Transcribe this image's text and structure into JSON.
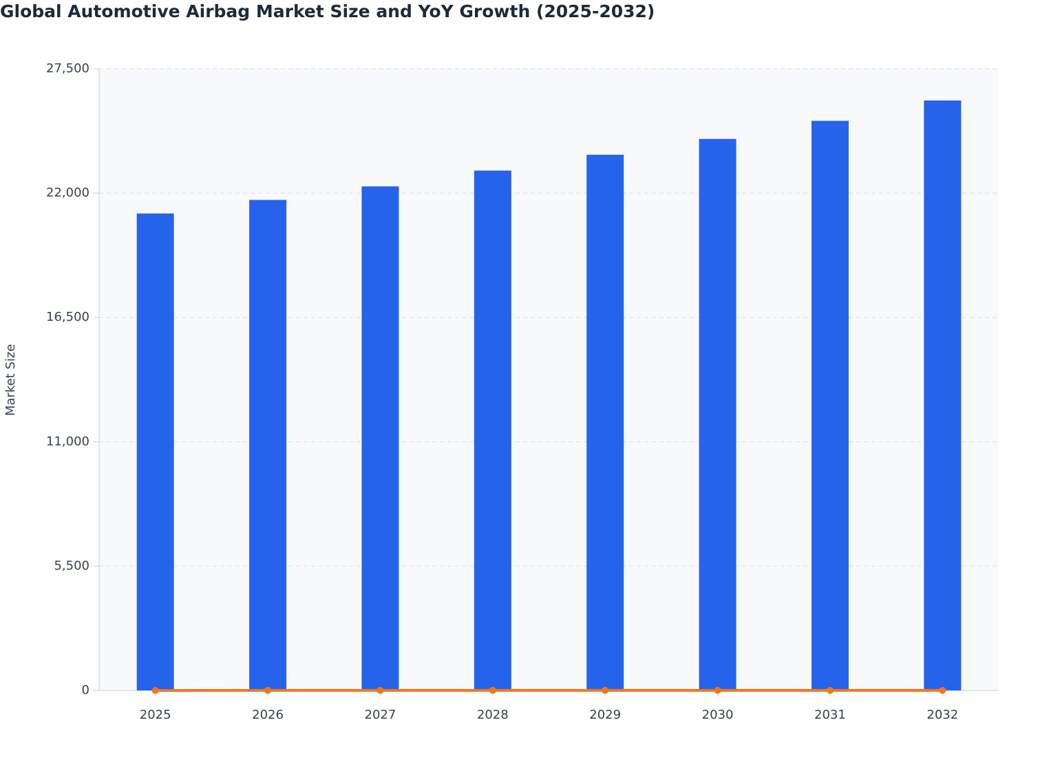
{
  "chart_data": {
    "type": "combo",
    "title": "Global Automotive Airbag Market Size and YoY Growth (2025-2032)",
    "y_label": "Market Size",
    "categories": [
      "2025",
      "2026",
      "2027",
      "2028",
      "2029",
      "2030",
      "2031",
      "2032"
    ],
    "series": [
      {
        "type": "bar",
        "color": "#2563eb",
        "values": [
          21100,
          21700,
          22300,
          23000,
          23700,
          24400,
          25200,
          26100
        ]
      },
      {
        "type": "line",
        "color": "#f97316",
        "values": [
          0,
          2.8,
          2.8,
          3.1,
          3.0,
          3.0,
          3.3,
          3.6
        ]
      }
    ],
    "ylim": [
      0,
      27500
    ],
    "yticks": [
      0,
      {
        "value": 5500,
        "label": "5,500"
      },
      {
        "value": 11000,
        "label": "11,000"
      },
      {
        "value": 16500,
        "label": "16,500"
      },
      {
        "value": 22000,
        "label": "22,000"
      },
      {
        "value": 27500,
        "label": "27,500"
      }
    ],
    "grid": true
  }
}
